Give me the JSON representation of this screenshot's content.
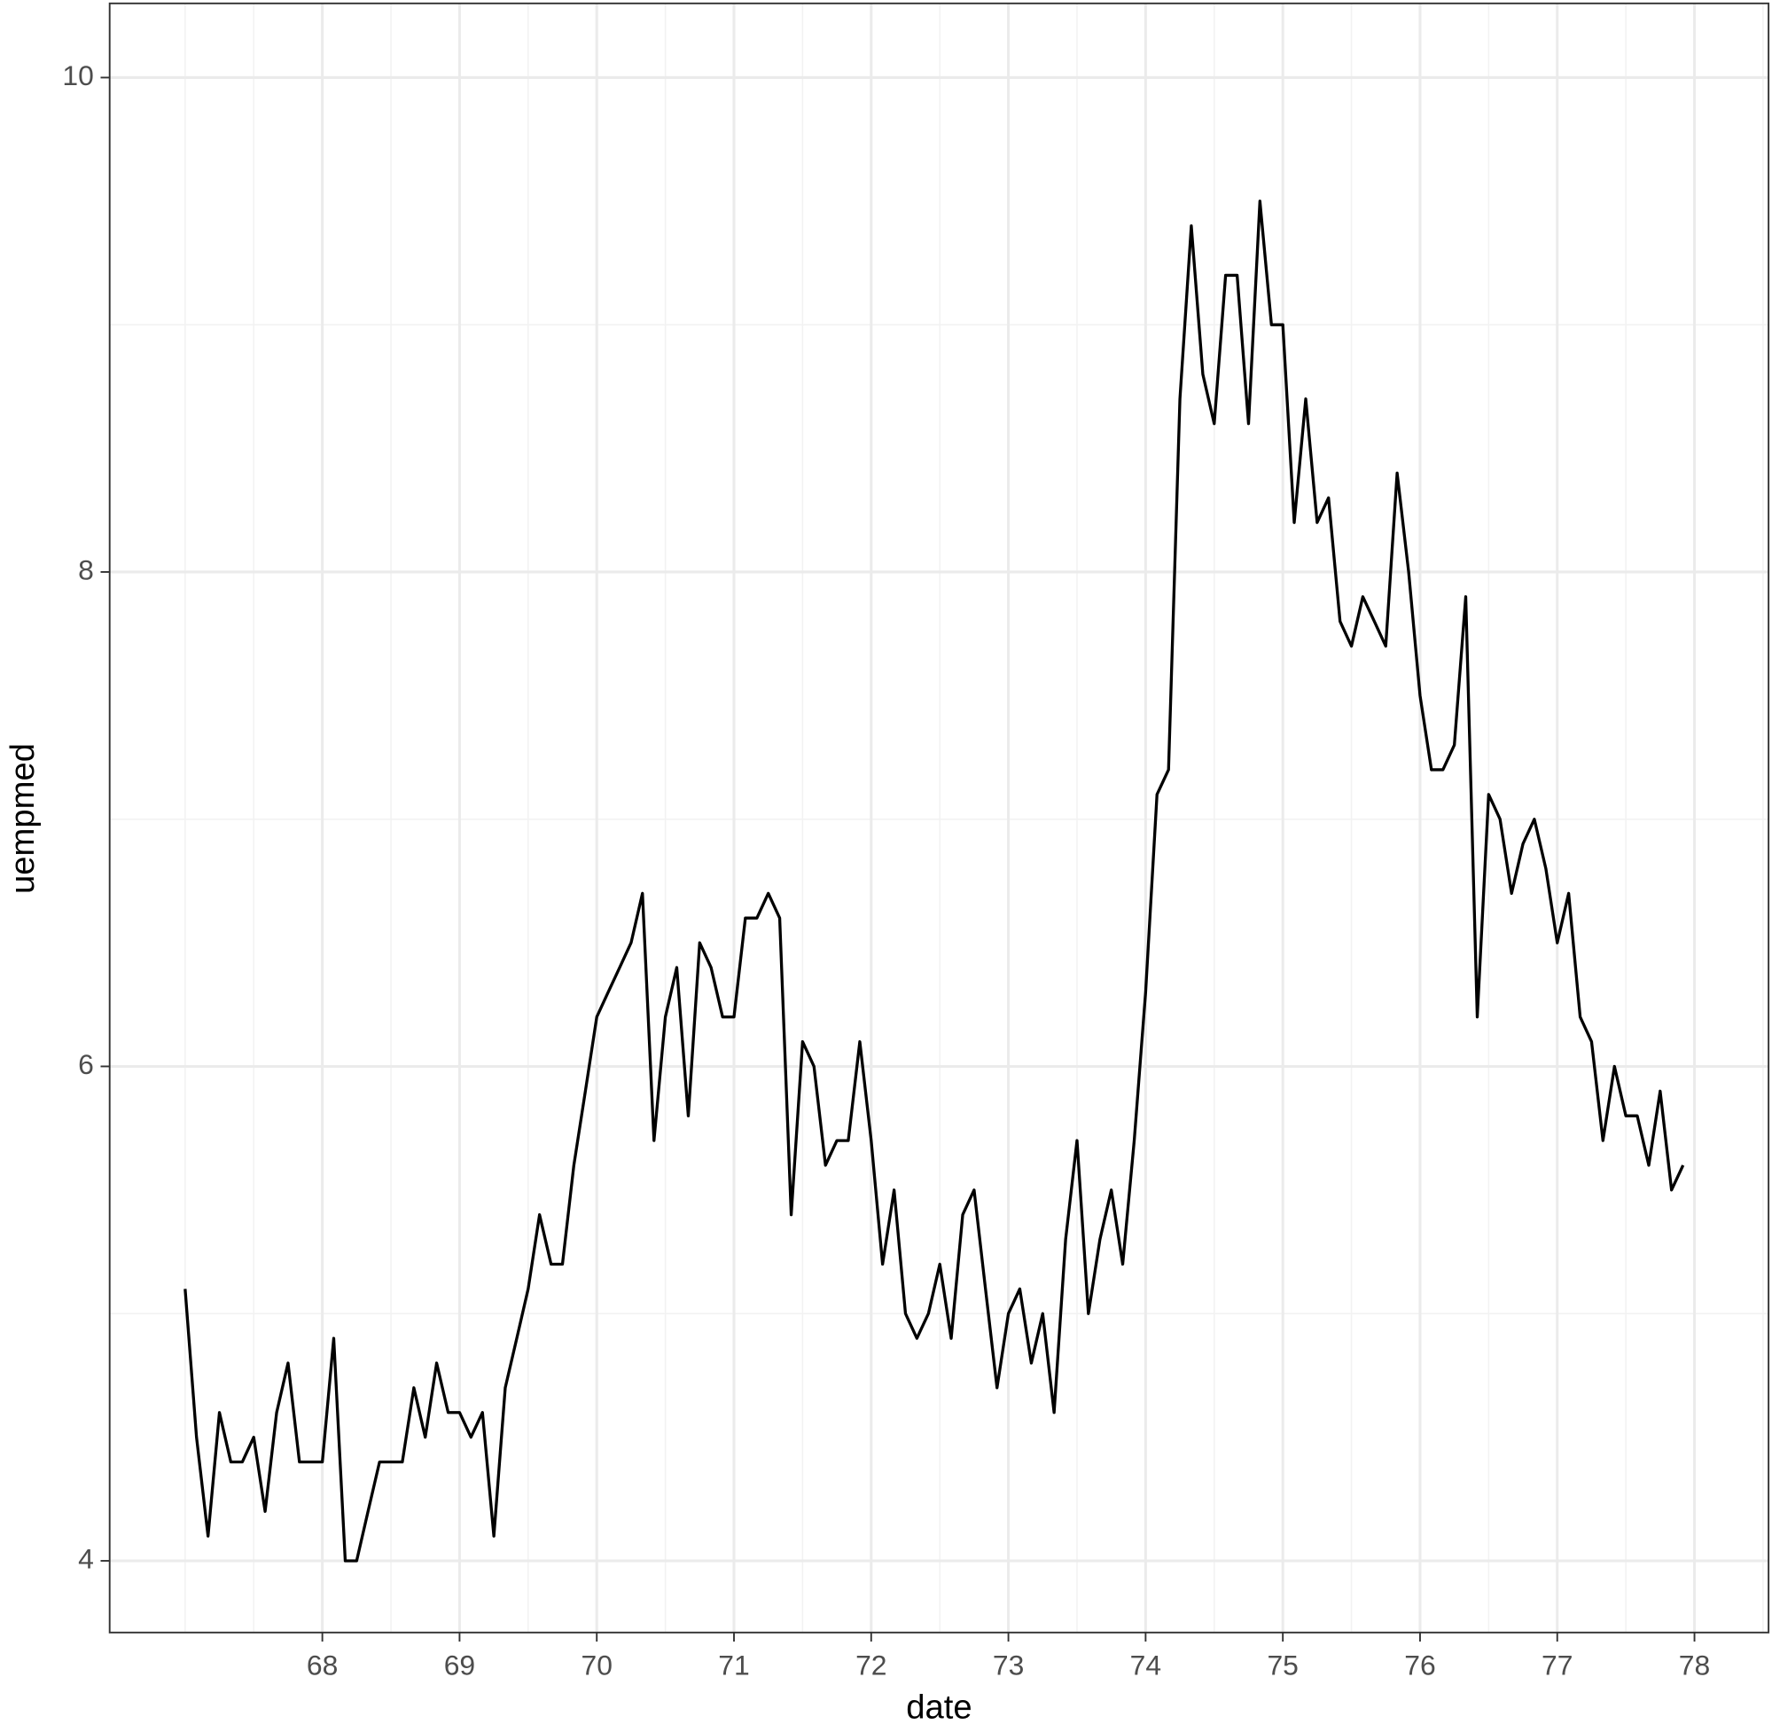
{
  "chart_data": {
    "type": "line",
    "x_label": "date",
    "y_label": "uempmed",
    "x": [
      67.0,
      67.083,
      67.167,
      67.25,
      67.333,
      67.417,
      67.5,
      67.583,
      67.667,
      67.75,
      67.833,
      67.917,
      68.0,
      68.083,
      68.167,
      68.25,
      68.333,
      68.417,
      68.5,
      68.583,
      68.667,
      68.75,
      68.833,
      68.917,
      69.0,
      69.083,
      69.167,
      69.25,
      69.333,
      69.417,
      69.5,
      69.583,
      69.667,
      69.75,
      69.833,
      69.917,
      70.0,
      70.083,
      70.167,
      70.25,
      70.333,
      70.417,
      70.5,
      70.583,
      70.667,
      70.75,
      70.833,
      70.917,
      71.0,
      71.083,
      71.167,
      71.25,
      71.333,
      71.417,
      71.5,
      71.583,
      71.667,
      71.75,
      71.833,
      71.917,
      72.0,
      72.083,
      72.167,
      72.25,
      72.333,
      72.417,
      72.5,
      72.583,
      72.667,
      72.75,
      72.833,
      72.917,
      73.0,
      73.083,
      73.167,
      73.25,
      73.333,
      73.417,
      73.5,
      73.583,
      73.667,
      73.75,
      73.833,
      73.917,
      74.0,
      74.083,
      74.167,
      74.25,
      74.333,
      74.417,
      74.5,
      74.583,
      74.667,
      74.75,
      74.833,
      74.917,
      75.0,
      75.083,
      75.167,
      75.25,
      75.333,
      75.417,
      75.5,
      75.583,
      75.667,
      75.75,
      75.833,
      75.917,
      76.0,
      76.083,
      76.167,
      76.25,
      76.333,
      76.417,
      76.5,
      76.583,
      76.667,
      76.75,
      76.833,
      76.917,
      77.0,
      77.083,
      77.167,
      77.25,
      77.333,
      77.417,
      77.5,
      77.583,
      77.667,
      77.75,
      77.833,
      77.917
    ],
    "values": [
      5.1,
      4.5,
      4.1,
      4.6,
      4.4,
      4.4,
      4.5,
      4.2,
      4.6,
      4.8,
      4.4,
      4.4,
      4.4,
      4.9,
      4.0,
      4.0,
      4.2,
      4.4,
      4.4,
      4.4,
      4.7,
      4.5,
      4.8,
      4.6,
      4.6,
      4.5,
      4.6,
      4.1,
      4.7,
      4.9,
      5.1,
      5.4,
      5.2,
      5.2,
      5.6,
      5.9,
      6.2,
      6.3,
      6.4,
      6.5,
      6.7,
      5.7,
      6.2,
      6.4,
      5.8,
      6.5,
      6.4,
      6.2,
      6.2,
      6.6,
      6.6,
      6.7,
      6.6,
      5.4,
      6.1,
      6.0,
      5.6,
      5.7,
      5.7,
      6.1,
      5.7,
      5.2,
      5.5,
      5.0,
      4.9,
      5.0,
      5.2,
      4.9,
      5.4,
      5.5,
      5.1,
      4.7,
      5.0,
      5.1,
      4.8,
      5.0,
      4.6,
      5.3,
      5.7,
      5.0,
      5.3,
      5.5,
      5.2,
      5.7,
      6.3,
      7.1,
      7.2,
      8.7,
      9.4,
      8.8,
      8.6,
      9.2,
      9.2,
      8.6,
      9.5,
      9.0,
      9.0,
      8.2,
      8.7,
      8.2,
      8.3,
      7.8,
      7.7,
      7.9,
      7.8,
      7.7,
      8.4,
      8.0,
      7.5,
      7.2,
      7.2,
      7.3,
      7.9,
      6.2,
      7.1,
      7.0,
      6.7,
      6.9,
      7.0,
      6.8,
      6.5,
      6.7,
      6.2,
      6.1,
      5.7,
      6.0,
      5.8,
      5.8,
      5.6,
      5.9,
      5.5,
      5.6
    ],
    "color": "#000000",
    "xlim": [
      66.45,
      78.54
    ],
    "xticks": [
      68,
      69,
      70,
      71,
      72,
      73,
      74,
      75,
      76,
      77,
      78
    ],
    "ylim": [
      3.71,
      10.3
    ],
    "yticks": [
      4,
      6,
      8,
      10
    ],
    "grid": true
  }
}
